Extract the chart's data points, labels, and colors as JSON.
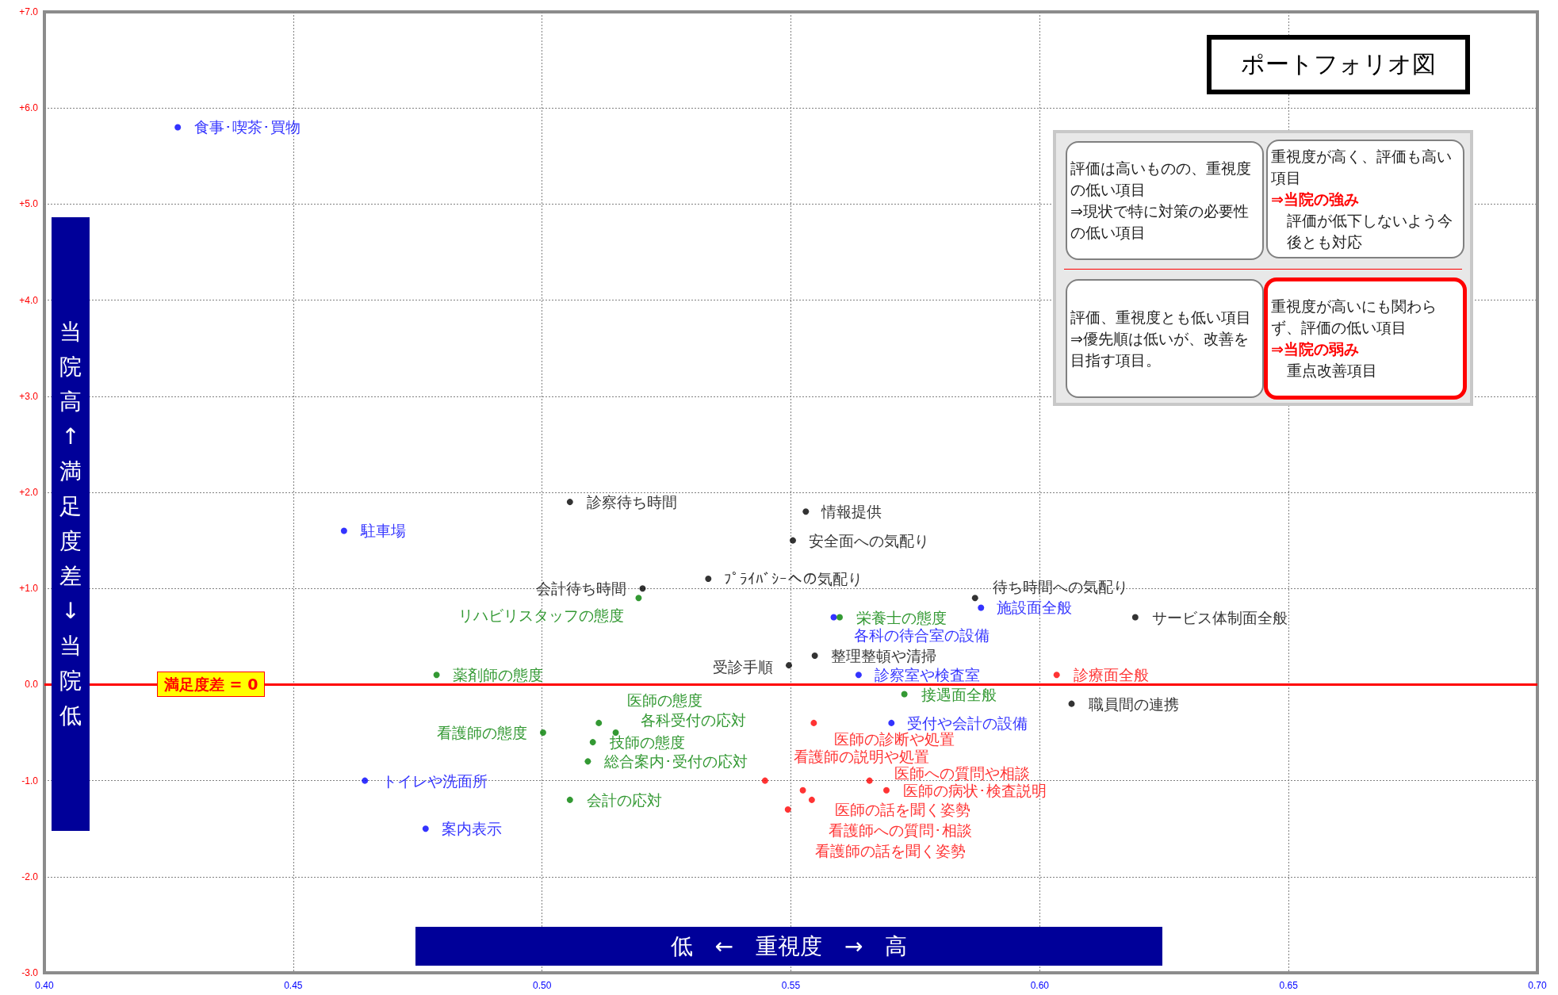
{
  "chart_data": {
    "type": "scatter",
    "xlabel": "低　←　重視度　→　高",
    "ylabel": "当院高↑満足度差↓当院低",
    "xlim": [
      0.4,
      0.7
    ],
    "xticks": [
      {
        "value": 0.4,
        "label": "0.40"
      },
      {
        "value": 0.45,
        "label": "0.45"
      },
      {
        "value": 0.5,
        "label": "0.50"
      },
      {
        "value": 0.55,
        "label": "0.55"
      },
      {
        "value": 0.6,
        "label": "0.60"
      },
      {
        "value": 0.65,
        "label": "0.65"
      },
      {
        "value": 0.7,
        "label": "0.70"
      }
    ],
    "ylim": [
      -3,
      7
    ],
    "yticks": [
      {
        "value": -3,
        "label": "-3.0"
      },
      {
        "value": -2,
        "label": "-2.0"
      },
      {
        "value": -1,
        "label": "-1.0"
      },
      {
        "value": 0,
        "label": "0.0"
      },
      {
        "value": 1,
        "label": "+1.0"
      },
      {
        "value": 2,
        "label": "+2.0"
      },
      {
        "value": 3,
        "label": "+3.0"
      },
      {
        "value": 4,
        "label": "+4.0"
      },
      {
        "value": 5,
        "label": "+5.0"
      },
      {
        "value": 6,
        "label": "+6.0"
      },
      {
        "value": 7,
        "label": "+7.0"
      }
    ],
    "grid": true,
    "marker": "circle",
    "ref_lines": [
      {
        "axis": "y",
        "value": 0,
        "label": "満足度差 = 0",
        "color": "#ff0000",
        "line_style": "solid"
      }
    ],
    "series": [
      {
        "color": "#0000ff",
        "x": [
          0.4268,
          0.4602,
          0.4644,
          0.4766,
          0.5882,
          0.5586,
          0.5636,
          0.5702
        ],
        "values": [
          5.8,
          1.6,
          -1.0,
          -1.5,
          0.8,
          0.7,
          0.1,
          -0.4
        ]
      },
      {
        "color": "#000000",
        "x": [
          0.5056,
          0.553,
          0.5504,
          0.5334,
          0.5202,
          0.587,
          0.6192,
          0.5548,
          0.5496,
          0.6064
        ],
        "values": [
          1.9,
          1.8,
          1.5,
          1.1,
          1.0,
          0.9,
          0.7,
          0.3,
          0.2,
          -0.2
        ]
      },
      {
        "color": "#008000",
        "x": [
          0.5194,
          0.5598,
          0.4788,
          0.5728,
          0.5114,
          0.5148,
          0.5002,
          0.5102,
          0.5092,
          0.5056
        ],
        "values": [
          0.9,
          0.7,
          0.1,
          -0.1,
          -0.4,
          -0.5,
          -0.5,
          -0.6,
          -0.8,
          -1.2
        ]
      },
      {
        "color": "#ff0000",
        "x": [
          0.6034,
          0.5546,
          0.5448,
          0.5658,
          0.5692,
          0.5524,
          0.5542,
          0.5494
        ],
        "values": [
          0.1,
          -0.4,
          -1.0,
          -1.0,
          -1.1,
          -1.1,
          -1.2,
          -1.3
        ]
      }
    ],
    "annotations": [
      "ポートフォリオ図",
      "評価は高いものの、重視度の低い項目",
      "⇒現状で特に対策の必要性の低い項目",
      "重視度が高く、評価も高い項目",
      "⇒当院の強み",
      "評価が低下しないよう今後とも対応",
      "評価、重視度とも低い項目",
      "⇒優先順は低いが、改善を目指す項目。",
      "重視度が高いにも関わらず、評価の低い項目",
      "⇒当院の弱み",
      "重点改善項目",
      {
        "text": "食事･喫茶･買物",
        "x": 0.4268,
        "y": 5.8
      },
      {
        "text": "駐車場",
        "x": 0.4602,
        "y": 1.6
      },
      {
        "text": "トイレや洗面所",
        "x": 0.4644,
        "y": -1.0
      },
      {
        "text": "案内表示",
        "x": 0.4766,
        "y": -1.5
      },
      {
        "text": "施設面全般",
        "x": 0.5882,
        "y": 0.8
      },
      {
        "text": "各科の待合室の設備",
        "x": 0.5586,
        "y": 0.7
      },
      {
        "text": "診察室や検査室",
        "x": 0.5636,
        "y": 0.1
      },
      {
        "text": "受付や会計の設備",
        "x": 0.5702,
        "y": -0.4
      },
      {
        "text": "診察待ち時間",
        "x": 0.5056,
        "y": 1.9
      },
      {
        "text": "情報提供",
        "x": 0.553,
        "y": 1.8
      },
      {
        "text": "安全面への気配り",
        "x": 0.5504,
        "y": 1.5
      },
      {
        "text": "ﾌﾟﾗｲﾊﾞｼｰへの気配り",
        "x": 0.5334,
        "y": 1.1
      },
      {
        "text": "会計待ち時間",
        "x": 0.5202,
        "y": 1.0
      },
      {
        "text": "待ち時間への気配り",
        "x": 0.587,
        "y": 0.9
      },
      {
        "text": "サービス体制面全般",
        "x": 0.6192,
        "y": 0.7
      },
      {
        "text": "整理整頓や清掃",
        "x": 0.5548,
        "y": 0.3
      },
      {
        "text": "受診手順",
        "x": 0.5496,
        "y": 0.2
      },
      {
        "text": "職員間の連携",
        "x": 0.6064,
        "y": -0.2
      },
      {
        "text": "リハビリスタッフの態度",
        "x": 0.5194,
        "y": 0.9
      },
      {
        "text": "栄養士の態度",
        "x": 0.5598,
        "y": 0.7
      },
      {
        "text": "薬剤師の態度",
        "x": 0.4788,
        "y": 0.1
      },
      {
        "text": "接遇面全般",
        "x": 0.5728,
        "y": -0.1
      },
      {
        "text": "医師の態度",
        "x": 0.5114,
        "y": -0.4
      },
      {
        "text": "各科受付の応対",
        "x": 0.5148,
        "y": -0.5
      },
      {
        "text": "看護師の態度",
        "x": 0.5002,
        "y": -0.5
      },
      {
        "text": "技師の態度",
        "x": 0.5102,
        "y": -0.6
      },
      {
        "text": "総合案内･受付の応対",
        "x": 0.5092,
        "y": -0.8
      },
      {
        "text": "会計の応対",
        "x": 0.5056,
        "y": -1.2
      },
      {
        "text": "診療面全般",
        "x": 0.6034,
        "y": 0.1
      },
      {
        "text": "医師の診断や処置",
        "x": 0.5546,
        "y": -0.4
      },
      {
        "text": "看護師の説明や処置",
        "x": 0.5448,
        "y": -1.0
      },
      {
        "text": "医師への質問や相談",
        "x": 0.5658,
        "y": -1.0
      },
      {
        "text": "医師の病状･検査説明",
        "x": 0.5692,
        "y": -1.1
      },
      {
        "text": "看護師への質問･相談",
        "x": 0.5524,
        "y": -1.1
      },
      {
        "text": "医師の話を聞く姿勢",
        "x": 0.5542,
        "y": -1.2
      },
      {
        "text": "看護師の話を聞く姿勢",
        "x": 0.5494,
        "y": -1.3
      }
    ]
  }
}
